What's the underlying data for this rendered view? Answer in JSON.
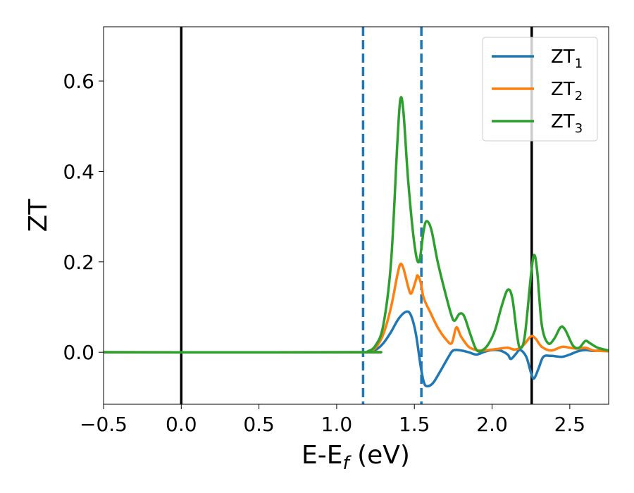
{
  "chart_data": {
    "type": "line",
    "title": "",
    "xlabel": "E-E",
    "xlabel_sub": "f",
    "xlabel_unit": " (eV)",
    "ylabel": "ZT",
    "xlim": [
      -0.5,
      2.75
    ],
    "ylim": [
      -0.115,
      0.72
    ],
    "grid": false,
    "legend_position": "top-right",
    "x_ticks": [
      {
        "value": -0.5,
        "label": "−0.5"
      },
      {
        "value": 0.0,
        "label": "0.0"
      },
      {
        "value": 0.5,
        "label": "0.5"
      },
      {
        "value": 1.0,
        "label": "1.0"
      },
      {
        "value": 1.5,
        "label": "1.5"
      },
      {
        "value": 2.0,
        "label": "2.0"
      },
      {
        "value": 2.5,
        "label": "2.5"
      }
    ],
    "y_ticks": [
      {
        "value": 0.0,
        "label": "0.0"
      },
      {
        "value": 0.2,
        "label": "0.2"
      },
      {
        "value": 0.4,
        "label": "0.4"
      },
      {
        "value": 0.6,
        "label": "0.6"
      }
    ],
    "vlines": [
      {
        "x": 0.0,
        "style": "solid",
        "color": "#000000"
      },
      {
        "x": 1.17,
        "style": "dashed",
        "color": "#1f77b4"
      },
      {
        "x": 1.545,
        "style": "dashed",
        "color": "#1f77b4"
      },
      {
        "x": 2.255,
        "style": "solid",
        "color": "#000000"
      }
    ],
    "series": [
      {
        "name": "ZT",
        "name_sub": "1",
        "color": "#1f77b4",
        "points": [
          [
            -0.5,
            0.0
          ],
          [
            1.15,
            0.0
          ],
          [
            1.2,
            0.001
          ],
          [
            1.25,
            0.005
          ],
          [
            1.3,
            0.02
          ],
          [
            1.35,
            0.045
          ],
          [
            1.4,
            0.075
          ],
          [
            1.45,
            0.09
          ],
          [
            1.48,
            0.08
          ],
          [
            1.51,
            0.04
          ],
          [
            1.54,
            -0.03
          ],
          [
            1.56,
            -0.065
          ],
          [
            1.58,
            -0.075
          ],
          [
            1.62,
            -0.068
          ],
          [
            1.67,
            -0.04
          ],
          [
            1.72,
            -0.01
          ],
          [
            1.75,
            0.004
          ],
          [
            1.8,
            0.004
          ],
          [
            1.85,
            0.0
          ],
          [
            1.9,
            -0.005
          ],
          [
            1.95,
            0.001
          ],
          [
            2.0,
            0.005
          ],
          [
            2.05,
            0.004
          ],
          [
            2.1,
            -0.005
          ],
          [
            2.12,
            -0.015
          ],
          [
            2.15,
            -0.005
          ],
          [
            2.18,
            0.005
          ],
          [
            2.22,
            -0.01
          ],
          [
            2.25,
            -0.045
          ],
          [
            2.27,
            -0.058
          ],
          [
            2.3,
            -0.035
          ],
          [
            2.33,
            -0.01
          ],
          [
            2.38,
            -0.008
          ],
          [
            2.45,
            -0.01
          ],
          [
            2.5,
            -0.005
          ],
          [
            2.55,
            0.002
          ],
          [
            2.6,
            0.005
          ],
          [
            2.65,
            0.003
          ],
          [
            2.7,
            0.004
          ],
          [
            2.75,
            0.003
          ]
        ]
      },
      {
        "name": "ZT",
        "name_sub": "2",
        "color": "#ff7f0e",
        "points": [
          [
            -0.5,
            0.0
          ],
          [
            1.15,
            0.0
          ],
          [
            1.2,
            0.002
          ],
          [
            1.25,
            0.01
          ],
          [
            1.3,
            0.04
          ],
          [
            1.35,
            0.1
          ],
          [
            1.39,
            0.17
          ],
          [
            1.41,
            0.195
          ],
          [
            1.43,
            0.185
          ],
          [
            1.46,
            0.145
          ],
          [
            1.48,
            0.13
          ],
          [
            1.51,
            0.16
          ],
          [
            1.52,
            0.17
          ],
          [
            1.54,
            0.155
          ],
          [
            1.56,
            0.12
          ],
          [
            1.6,
            0.09
          ],
          [
            1.65,
            0.055
          ],
          [
            1.7,
            0.03
          ],
          [
            1.74,
            0.02
          ],
          [
            1.77,
            0.055
          ],
          [
            1.8,
            0.035
          ],
          [
            1.85,
            0.012
          ],
          [
            1.9,
            0.005
          ],
          [
            1.95,
            0.004
          ],
          [
            2.0,
            0.006
          ],
          [
            2.05,
            0.008
          ],
          [
            2.1,
            0.01
          ],
          [
            2.15,
            0.006
          ],
          [
            2.2,
            0.015
          ],
          [
            2.25,
            0.035
          ],
          [
            2.28,
            0.03
          ],
          [
            2.32,
            0.012
          ],
          [
            2.38,
            0.004
          ],
          [
            2.45,
            0.012
          ],
          [
            2.5,
            0.01
          ],
          [
            2.55,
            0.008
          ],
          [
            2.6,
            0.01
          ],
          [
            2.65,
            0.004
          ],
          [
            2.7,
            0.003
          ],
          [
            2.75,
            0.002
          ]
        ]
      },
      {
        "name": "ZT",
        "name_sub": "3",
        "color": "#2ca02c",
        "points": [
          [
            -0.5,
            0.0
          ],
          [
            1.15,
            0.0
          ],
          [
            1.2,
            0.002
          ],
          [
            1.25,
            0.015
          ],
          [
            1.3,
            0.06
          ],
          [
            1.35,
            0.2
          ],
          [
            1.39,
            0.46
          ],
          [
            1.41,
            0.56
          ],
          [
            1.43,
            0.53
          ],
          [
            1.46,
            0.38
          ],
          [
            1.5,
            0.24
          ],
          [
            1.53,
            0.2
          ],
          [
            1.56,
            0.27
          ],
          [
            1.58,
            0.29
          ],
          [
            1.61,
            0.27
          ],
          [
            1.65,
            0.2
          ],
          [
            1.7,
            0.13
          ],
          [
            1.74,
            0.08
          ],
          [
            1.76,
            0.07
          ],
          [
            1.79,
            0.085
          ],
          [
            1.82,
            0.08
          ],
          [
            1.86,
            0.04
          ],
          [
            1.9,
            0.005
          ],
          [
            1.94,
            0.005
          ],
          [
            1.98,
            0.02
          ],
          [
            2.02,
            0.05
          ],
          [
            2.06,
            0.1
          ],
          [
            2.1,
            0.138
          ],
          [
            2.13,
            0.12
          ],
          [
            2.16,
            0.04
          ],
          [
            2.18,
            0.01
          ],
          [
            2.21,
            0.035
          ],
          [
            2.25,
            0.17
          ],
          [
            2.27,
            0.215
          ],
          [
            2.29,
            0.18
          ],
          [
            2.32,
            0.06
          ],
          [
            2.36,
            0.02
          ],
          [
            2.4,
            0.03
          ],
          [
            2.44,
            0.055
          ],
          [
            2.47,
            0.05
          ],
          [
            2.52,
            0.015
          ],
          [
            2.56,
            0.01
          ],
          [
            2.6,
            0.025
          ],
          [
            2.63,
            0.02
          ],
          [
            2.68,
            0.01
          ],
          [
            2.75,
            0.004
          ]
        ]
      }
    ]
  }
}
